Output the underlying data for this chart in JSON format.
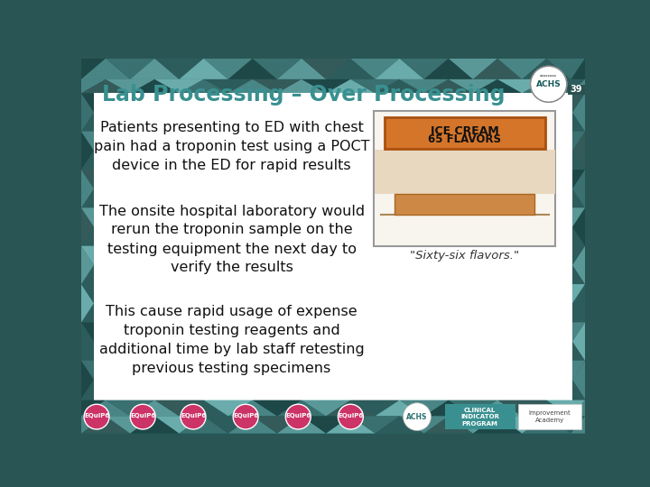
{
  "title": "Lab Processing – Over Processing",
  "title_color": "#3A9090",
  "title_fontsize": 17,
  "bg_color": "#FFFFFF",
  "bullet1_line1": "Patients presenting to ED with chest",
  "bullet1_line2": "pain had a troponin test using a POCT",
  "bullet1_line3": "device in the ED for rapid results",
  "bullet2_line1": "The onsite hospital laboratory would",
  "bullet2_line2": "rerun the troponin sample on the",
  "bullet2_line3": "testing equipment the next day to",
  "bullet2_line4": "verify the results",
  "bullet3_line1": "This cause rapid usage of expense",
  "bullet3_line2": "troponin testing reagents and",
  "bullet3_line3": "additional time by lab staff retesting",
  "bullet3_line4": "previous testing specimens",
  "text_color": "#111111",
  "text_fontsize": 11.5,
  "caption": "\"Sixty-six flavors.\"",
  "page_number": "39",
  "footer_teal": "#1A7070",
  "header_dark": "#2A5555"
}
